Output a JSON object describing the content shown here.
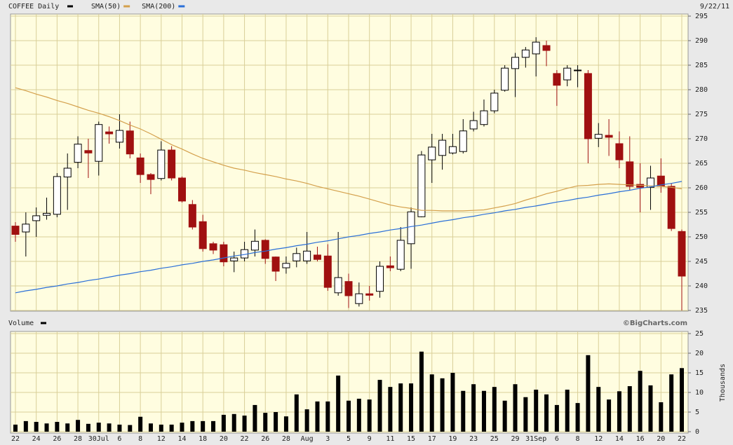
{
  "chart_data": [
    {
      "type": "candlestick",
      "title": "COFFEE Daily",
      "title_color": "#000000",
      "date": "9/22/11",
      "open": [
        252.2,
        251,
        253.3,
        254.4,
        254.6,
        262.2,
        265.2,
        267.6,
        265.4,
        271.4,
        269.3,
        271.6,
        266.1,
        262.7,
        261.9,
        267.7,
        262,
        256.6,
        253.1,
        248.6,
        248.4,
        245.1,
        245.7,
        247.3,
        249.3,
        245.9,
        243.7,
        245.1,
        245.1,
        246.3,
        246.1,
        238.6,
        240.9,
        236.4,
        238.4,
        238.9,
        244.1,
        243.4,
        248.6,
        254.1,
        265.7,
        266.6,
        267.1,
        267.4,
        272,
        272.9,
        275.7,
        279.9,
        284.3,
        286.6,
        287.3,
        289,
        283.3,
        282,
        283.9,
        283.3,
        270.1,
        270.7,
        269,
        265.3,
        260.7,
        260.1,
        262.4,
        260.3,
        251.1
      ],
      "high": [
        253,
        255,
        256,
        258,
        263,
        267,
        270.5,
        270,
        273.5,
        272.5,
        275,
        273.5,
        267,
        263,
        269.5,
        268.5,
        262.3,
        257.5,
        254.5,
        249,
        249,
        247,
        249,
        251.5,
        249.5,
        246,
        246,
        247.8,
        251,
        248,
        248.5,
        251,
        242.5,
        240.7,
        240,
        245,
        246,
        252,
        256,
        267.5,
        271,
        271,
        271,
        274,
        275.5,
        278,
        280,
        285,
        287.5,
        288.7,
        290.7,
        290,
        284,
        285,
        285,
        284,
        273.2,
        274,
        271.5,
        270.5,
        265,
        264.5,
        266,
        261,
        251.5
      ],
      "low": [
        249,
        246,
        250,
        253.5,
        254,
        255.5,
        264,
        262,
        262.5,
        269,
        268,
        266,
        261,
        258.7,
        261.5,
        261.5,
        257,
        251.5,
        247,
        246.5,
        244,
        242.8,
        245,
        246,
        244.5,
        241,
        242.5,
        243.8,
        244.5,
        245,
        239,
        238,
        235.5,
        235.8,
        237,
        237.6,
        243,
        243,
        243.5,
        254,
        261,
        263.7,
        266.8,
        267,
        271.5,
        272.5,
        275.2,
        279.6,
        278.5,
        284.5,
        282.7,
        284.8,
        276.7,
        280.7,
        280.5,
        265,
        268.3,
        266.5,
        264,
        259.5,
        255,
        255.5,
        259,
        251.2,
        235
      ],
      "close": [
        250.5,
        252.6,
        254.3,
        254.8,
        262.3,
        264,
        268.9,
        267.1,
        272.9,
        271,
        271.7,
        266.9,
        262.7,
        261.7,
        267.7,
        262,
        257.3,
        252,
        247.6,
        247.3,
        244.9,
        245.7,
        247.4,
        249.1,
        245.6,
        243,
        244.6,
        246.6,
        247.1,
        245.4,
        239.7,
        241.7,
        238,
        238.4,
        238.1,
        244,
        243.7,
        249.3,
        255.1,
        266.7,
        268.3,
        269.7,
        268.4,
        271.6,
        273.7,
        275.7,
        279.3,
        284.4,
        286.6,
        288.1,
        289.7,
        288,
        280.9,
        284.4,
        284,
        270,
        270.9,
        270.3,
        265.7,
        260.3,
        260.1,
        262,
        260.3,
        251.7,
        242
      ],
      "up_color": "#ffffff",
      "down_color": "#a01010",
      "overlays": [
        {
          "name": "SMA(50)",
          "color": "#d4a04c",
          "values": [
            280.4,
            279.8,
            279.1,
            278.5,
            277.8,
            277.2,
            276.5,
            275.8,
            275.2,
            274.5,
            273.7,
            272.8,
            272,
            271,
            269.9,
            268.8,
            267.9,
            266.9,
            266,
            265.3,
            264.6,
            264,
            263.6,
            263.1,
            262.7,
            262.3,
            261.8,
            261.4,
            260.9,
            260.3,
            259.8,
            259.3,
            258.8,
            258.3,
            257.7,
            257.1,
            256.5,
            256.1,
            255.8,
            255.4,
            255.4,
            255.3,
            255.3,
            255.3,
            255.4,
            255.5,
            255.9,
            256.3,
            256.8,
            257.5,
            258.1,
            258.8,
            259.3,
            259.9,
            260.4,
            260.5,
            260.7,
            260.8,
            260.7,
            260.6,
            260.5,
            260.4,
            260.3,
            260.1,
            259.8
          ]
        },
        {
          "name": "SMA(200)",
          "color": "#2a6fd8",
          "values": [
            238.6,
            239.0,
            239.3,
            239.7,
            240.0,
            240.4,
            240.7,
            241.1,
            241.4,
            241.8,
            242.2,
            242.5,
            242.9,
            243.2,
            243.6,
            243.9,
            244.3,
            244.6,
            245.0,
            245.3,
            245.7,
            246.1,
            246.4,
            246.8,
            247.1,
            247.5,
            247.8,
            248.2,
            248.5,
            248.9,
            249.2,
            249.6,
            250.0,
            250.3,
            250.7,
            251.0,
            251.4,
            251.7,
            252.1,
            252.4,
            252.8,
            253.2,
            253.5,
            253.9,
            254.2,
            254.6,
            254.9,
            255.3,
            255.6,
            256.0,
            256.3,
            256.7,
            257.1,
            257.4,
            257.8,
            258.1,
            258.5,
            258.8,
            259.2,
            259.5,
            259.9,
            260.2,
            260.6,
            260.9,
            261.3
          ]
        }
      ],
      "ylim": [
        235,
        295
      ],
      "yticks": [
        235,
        240,
        245,
        250,
        255,
        260,
        265,
        270,
        275,
        280,
        285,
        290,
        295
      ],
      "grid": true
    },
    {
      "type": "bar",
      "title": "Volume",
      "title_color": "#000000",
      "source": "©BigCharts.com",
      "y_label": "Thousands",
      "categories": [
        "22",
        null,
        "24",
        null,
        "26",
        null,
        "28",
        null,
        "30Jul",
        null,
        "6",
        null,
        "8",
        null,
        "12",
        null,
        "14",
        null,
        "18",
        null,
        "20",
        null,
        "22",
        null,
        "26",
        null,
        "28",
        null,
        "Aug",
        null,
        "3",
        null,
        "5",
        null,
        "9",
        null,
        "11",
        null,
        "15",
        null,
        "17",
        null,
        "19",
        null,
        "23",
        null,
        "25",
        null,
        "29",
        null,
        "31Sep",
        null,
        "6",
        null,
        "8",
        null,
        "12",
        null,
        "14",
        null,
        "16",
        null,
        "20",
        null,
        "22"
      ],
      "values": [
        1.8,
        2.7,
        2.5,
        2.1,
        2.5,
        2.1,
        3.0,
        2.0,
        2.3,
        2.1,
        1.8,
        1.7,
        3.8,
        2.1,
        1.8,
        1.8,
        2.3,
        2.7,
        2.7,
        2.7,
        4.3,
        4.5,
        4.1,
        6.8,
        4.8,
        5.0,
        3.9,
        9.5,
        5.7,
        7.7,
        7.7,
        14.3,
        7.9,
        8.4,
        8.2,
        13.2,
        11.4,
        12.3,
        12.3,
        20.4,
        14.6,
        13.6,
        15.0,
        10.4,
        12.1,
        10.4,
        11.4,
        7.9,
        12.1,
        8.8,
        10.7,
        9.5,
        6.8,
        10.7,
        7.3,
        19.5,
        11.4,
        8.2,
        10.3,
        11.6,
        15.5,
        11.8,
        7.5,
        14.6,
        16.2
      ],
      "color": "#000000",
      "ylim": [
        0,
        25
      ],
      "yticks": [
        0,
        5,
        10,
        15,
        20,
        25
      ],
      "grid": true
    }
  ]
}
